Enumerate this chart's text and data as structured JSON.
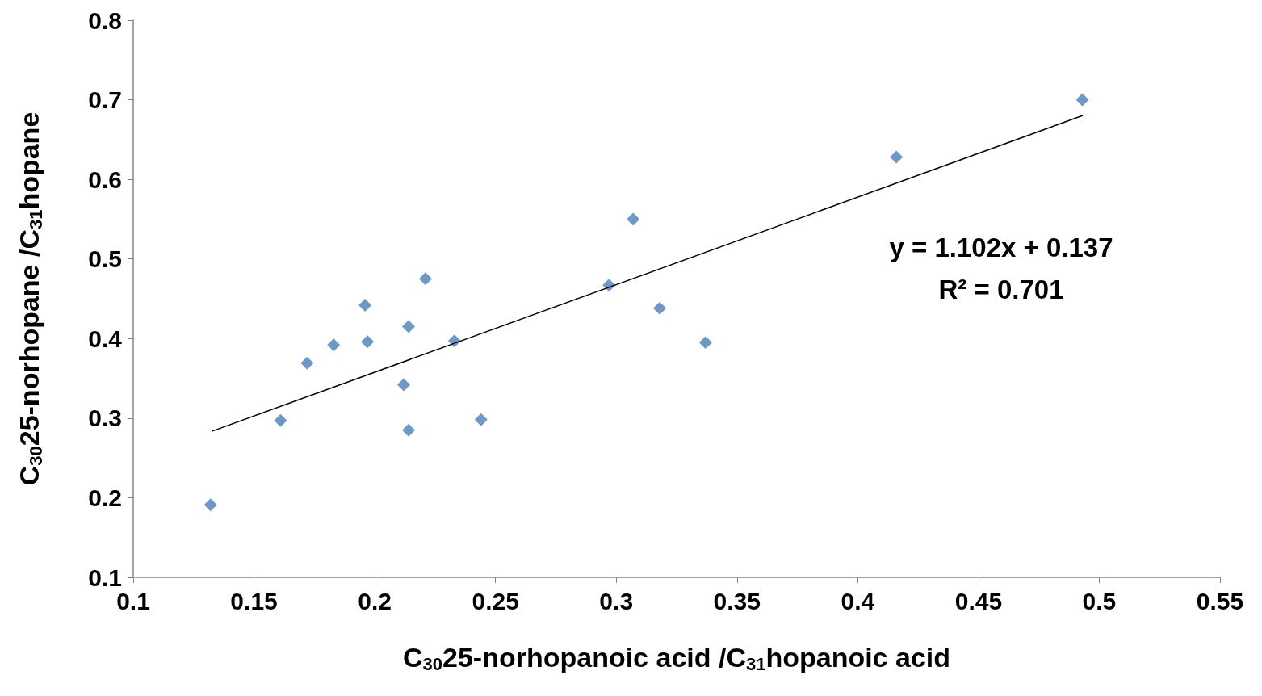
{
  "chart_data": {
    "type": "scatter",
    "xlabel": "C$_{30}$25-norhopanoic acid /C$_{31}$hopanoic acid",
    "ylabel": "C$_{30}$25-norhopane /C$_{31}$hopane",
    "annotations": [
      "y = 1.102x + 0.137",
      "R² = 0.701"
    ],
    "series": [
      {
        "color": "#4a7ebb",
        "marker": "diamond",
        "x": [
          0.132,
          0.161,
          0.172,
          0.183,
          0.196,
          0.197,
          0.212,
          0.214,
          0.214,
          0.221,
          0.233,
          0.244,
          0.297,
          0.307,
          0.318,
          0.337,
          0.416,
          0.493
        ],
        "values": [
          0.191,
          0.297,
          0.369,
          0.392,
          0.442,
          0.396,
          0.342,
          0.415,
          0.285,
          0.475,
          0.397,
          0.298,
          0.467,
          0.55,
          0.438,
          0.395,
          0.628,
          0.7
        ]
      },
      {
        "type": "line",
        "color": "#000000",
        "marker": "none",
        "x": [
          0.133,
          0.493
        ],
        "values": [
          0.284,
          0.68
        ]
      }
    ],
    "xlim": [
      0.1,
      0.55
    ],
    "xticks": [
      0.1,
      0.15,
      0.2,
      0.25,
      0.3,
      0.35,
      0.4,
      0.45,
      0.5,
      0.55
    ],
    "ylim": [
      0.1,
      0.8
    ],
    "yticks": [
      0.1,
      0.2,
      0.3,
      0.4,
      0.5,
      0.6,
      0.7,
      0.8
    ],
    "grid": false
  }
}
